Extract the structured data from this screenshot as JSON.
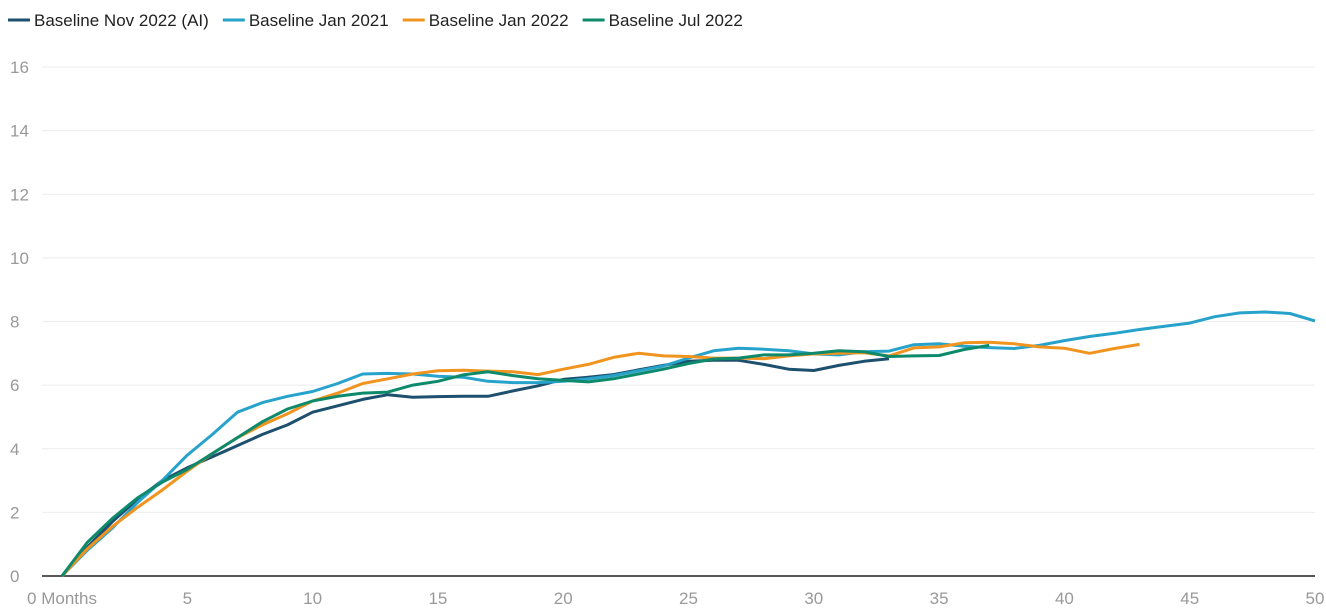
{
  "chart_data": {
    "type": "line",
    "x": [
      0,
      1,
      2,
      3,
      4,
      5,
      6,
      7,
      8,
      9,
      10,
      11,
      12,
      13,
      14,
      15,
      16,
      17,
      18,
      19,
      20,
      21,
      22,
      23,
      24,
      25,
      26,
      27,
      28,
      29,
      30,
      31,
      32,
      33,
      34,
      35,
      36,
      37,
      38,
      39,
      40,
      41,
      42,
      43,
      44,
      45,
      46,
      47,
      48,
      49,
      50
    ],
    "series": [
      {
        "name": "Baseline Nov 2022 (AI)",
        "color": "#1d4f6e",
        "values": [
          0,
          0.9,
          1.7,
          2.4,
          3.0,
          3.4,
          3.75,
          4.1,
          4.45,
          4.75,
          5.15,
          5.35,
          5.55,
          5.7,
          5.62,
          5.64,
          5.65,
          5.65,
          5.82,
          5.98,
          6.18,
          6.25,
          6.33,
          6.48,
          6.62,
          6.75,
          6.78,
          6.78,
          6.65,
          6.5,
          6.46,
          6.62,
          6.75,
          6.83,
          null,
          null,
          null,
          null,
          null,
          null,
          null,
          null,
          null,
          null,
          null,
          null,
          null,
          null,
          null,
          null,
          null
        ]
      },
      {
        "name": "Baseline Jan 2021",
        "color": "#27a3cb",
        "values": [
          0,
          0.8,
          1.5,
          2.3,
          3.0,
          3.8,
          4.45,
          5.15,
          5.45,
          5.65,
          5.8,
          6.05,
          6.35,
          6.37,
          6.35,
          6.28,
          6.25,
          6.12,
          6.08,
          6.08,
          6.12,
          6.2,
          6.3,
          6.45,
          6.6,
          6.85,
          7.08,
          7.16,
          7.13,
          7.08,
          6.98,
          6.95,
          7.05,
          7.07,
          7.27,
          7.3,
          7.22,
          7.18,
          7.15,
          7.25,
          7.4,
          7.53,
          7.63,
          7.75,
          7.85,
          7.95,
          8.15,
          8.27,
          8.3,
          8.25,
          8.02
        ]
      },
      {
        "name": "Baseline Jan 2022",
        "color": "#f0941f",
        "values": [
          0,
          0.85,
          1.55,
          2.15,
          2.7,
          3.3,
          3.85,
          4.35,
          4.75,
          5.1,
          5.5,
          5.75,
          6.05,
          6.2,
          6.35,
          6.45,
          6.47,
          6.44,
          6.42,
          6.33,
          6.5,
          6.65,
          6.87,
          7.0,
          6.92,
          6.9,
          6.85,
          6.85,
          6.83,
          6.92,
          6.98,
          7.0,
          7.02,
          6.92,
          7.17,
          7.2,
          7.33,
          7.35,
          7.3,
          7.2,
          7.16,
          7.0,
          7.15,
          7.28,
          null,
          null,
          null,
          null,
          null,
          null,
          null
        ]
      },
      {
        "name": "Baseline Jul 2022",
        "color": "#0d8a6c",
        "values": [
          0,
          1.05,
          1.8,
          2.45,
          2.95,
          3.35,
          3.85,
          4.35,
          4.85,
          5.25,
          5.5,
          5.65,
          5.75,
          5.78,
          6.0,
          6.12,
          6.32,
          6.42,
          6.3,
          6.2,
          6.15,
          6.1,
          6.2,
          6.35,
          6.5,
          6.68,
          6.82,
          6.85,
          6.95,
          6.95,
          7.0,
          7.08,
          7.05,
          6.9,
          6.92,
          6.93,
          7.12,
          7.25,
          null,
          null,
          null,
          null,
          null,
          null,
          null,
          null,
          null,
          null,
          null,
          null,
          null
        ]
      }
    ],
    "xlim": [
      0,
      50
    ],
    "xticks": [
      {
        "value": 0,
        "label": "0 Months"
      },
      5,
      10,
      15,
      20,
      25,
      30,
      35,
      40,
      45,
      50
    ],
    "ylim": [
      0,
      16
    ],
    "yticks": [
      0,
      2,
      4,
      6,
      8,
      10,
      12,
      14,
      16
    ],
    "grid": true,
    "legend": "top"
  }
}
